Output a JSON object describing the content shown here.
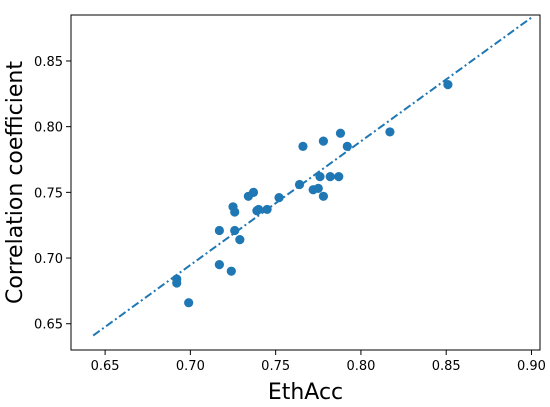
{
  "chart_data": {
    "type": "scatter",
    "title": "",
    "xlabel": "EthAcc",
    "ylabel": "Correlation coefficient",
    "xlim": [
      0.63,
      0.905
    ],
    "ylim": [
      0.63,
      0.885
    ],
    "xticks": [
      0.65,
      0.7,
      0.75,
      0.8,
      0.85,
      0.9
    ],
    "yticks": [
      0.65,
      0.7,
      0.75,
      0.8,
      0.85
    ],
    "xtick_labels": [
      "0.65",
      "0.70",
      "0.75",
      "0.80",
      "0.85",
      "0.90"
    ],
    "ytick_labels": [
      "0.65",
      "0.70",
      "0.75",
      "0.80",
      "0.85"
    ],
    "grid": false,
    "legend": "none",
    "point_color": "#1f77b4",
    "line_color": "#1f77b4",
    "points": [
      {
        "x": 0.692,
        "y": 0.684
      },
      {
        "x": 0.692,
        "y": 0.681
      },
      {
        "x": 0.699,
        "y": 0.666
      },
      {
        "x": 0.717,
        "y": 0.721
      },
      {
        "x": 0.717,
        "y": 0.695
      },
      {
        "x": 0.724,
        "y": 0.69
      },
      {
        "x": 0.725,
        "y": 0.739
      },
      {
        "x": 0.726,
        "y": 0.735
      },
      {
        "x": 0.726,
        "y": 0.721
      },
      {
        "x": 0.729,
        "y": 0.714
      },
      {
        "x": 0.734,
        "y": 0.747
      },
      {
        "x": 0.737,
        "y": 0.75
      },
      {
        "x": 0.739,
        "y": 0.736
      },
      {
        "x": 0.74,
        "y": 0.737
      },
      {
        "x": 0.745,
        "y": 0.737
      },
      {
        "x": 0.752,
        "y": 0.746
      },
      {
        "x": 0.764,
        "y": 0.756
      },
      {
        "x": 0.766,
        "y": 0.785
      },
      {
        "x": 0.772,
        "y": 0.752
      },
      {
        "x": 0.775,
        "y": 0.753
      },
      {
        "x": 0.776,
        "y": 0.762
      },
      {
        "x": 0.778,
        "y": 0.789
      },
      {
        "x": 0.778,
        "y": 0.747
      },
      {
        "x": 0.782,
        "y": 0.762
      },
      {
        "x": 0.787,
        "y": 0.762
      },
      {
        "x": 0.788,
        "y": 0.795
      },
      {
        "x": 0.792,
        "y": 0.785
      },
      {
        "x": 0.817,
        "y": 0.796
      },
      {
        "x": 0.851,
        "y": 0.832
      }
    ],
    "fit_line": {
      "x": [
        0.643,
        0.901
      ],
      "y": [
        0.641,
        0.884
      ]
    }
  }
}
